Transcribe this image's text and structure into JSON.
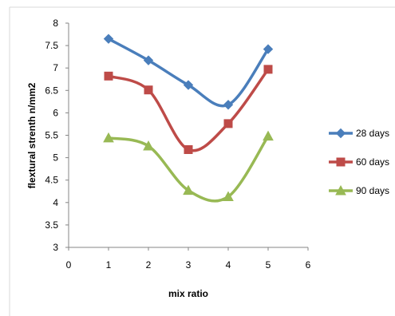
{
  "chart_data": {
    "type": "line",
    "title": "",
    "xlabel": "mix ratio",
    "ylabel": "flextural strenth n/mm2",
    "xlim": [
      0,
      6
    ],
    "ylim": [
      3,
      8
    ],
    "xticks": [
      "0",
      "1",
      "2",
      "3",
      "4",
      "5",
      "6"
    ],
    "yticks": [
      "3",
      "3.5",
      "4",
      "4.5",
      "5",
      "5.5",
      "6",
      "6.5",
      "7",
      "7.5",
      "8"
    ],
    "x": [
      1,
      2,
      3,
      4,
      5
    ],
    "smooth": true,
    "grid": false,
    "legend_position": "right",
    "series": [
      {
        "name": "28 days",
        "values": [
          7.65,
          7.17,
          6.62,
          6.18,
          7.42
        ],
        "color": "#4a7ebb",
        "marker": "diamond"
      },
      {
        "name": "60 days",
        "values": [
          6.82,
          6.51,
          5.18,
          5.76,
          6.97
        ],
        "color": "#be4b48",
        "marker": "square"
      },
      {
        "name": "90 days",
        "values": [
          5.44,
          5.26,
          4.27,
          4.13,
          5.48
        ],
        "color": "#98b954",
        "marker": "triangle"
      }
    ]
  }
}
